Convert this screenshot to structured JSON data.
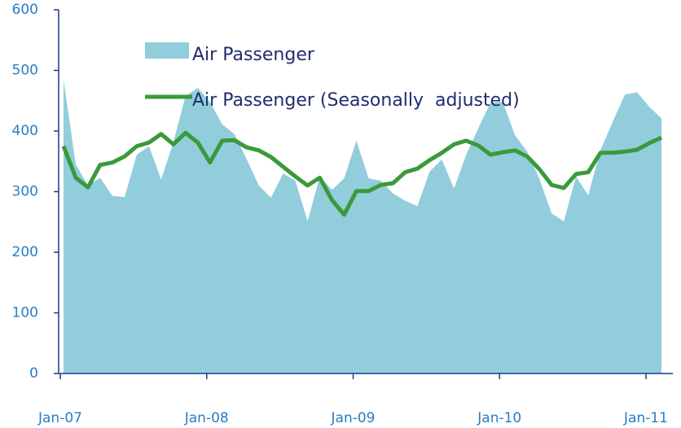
{
  "chart_data": {
    "type": "area_line",
    "categories": [
      "Jan-07",
      null,
      null,
      null,
      null,
      null,
      null,
      null,
      null,
      null,
      null,
      null,
      "Jan-08",
      null,
      null,
      null,
      null,
      null,
      null,
      null,
      null,
      null,
      null,
      null,
      "Jan-09",
      null,
      null,
      null,
      null,
      null,
      null,
      null,
      null,
      null,
      null,
      null,
      "Jan-10",
      null,
      null,
      null,
      null,
      null,
      null,
      null,
      null,
      null,
      null,
      null,
      "Jan-11",
      null
    ],
    "series": [
      {
        "name": "Air Passenger",
        "kind": "area",
        "color": "#92cddc",
        "values": [
          485,
          345,
          310,
          323,
          293,
          291,
          361,
          375,
          320,
          381,
          458,
          471,
          448,
          411,
          395,
          354,
          310,
          290,
          330,
          318,
          251,
          325,
          303,
          322,
          384,
          322,
          318,
          297,
          285,
          276,
          333,
          353,
          305,
          361,
          405,
          447,
          448,
          393,
          366,
          321,
          264,
          251,
          325,
          294,
          368,
          415,
          460,
          464,
          440,
          421
        ]
      },
      {
        "name": "Air Passenger (Seasonally  adjusted)",
        "kind": "line",
        "color": "#3a9a3a",
        "values": [
          375,
          323,
          307,
          344,
          348,
          358,
          375,
          381,
          395,
          378,
          397,
          381,
          348,
          384,
          385,
          373,
          368,
          357,
          341,
          325,
          310,
          323,
          286,
          262,
          301,
          301,
          311,
          314,
          332,
          338,
          352,
          364,
          378,
          384,
          376,
          361,
          365,
          368,
          358,
          337,
          311,
          306,
          329,
          332,
          364,
          364,
          366,
          369,
          380,
          389
        ]
      }
    ],
    "ylim": [
      0,
      600
    ],
    "yticks": [
      0,
      100,
      200,
      300,
      400,
      500,
      600
    ],
    "legend": "top-left"
  }
}
